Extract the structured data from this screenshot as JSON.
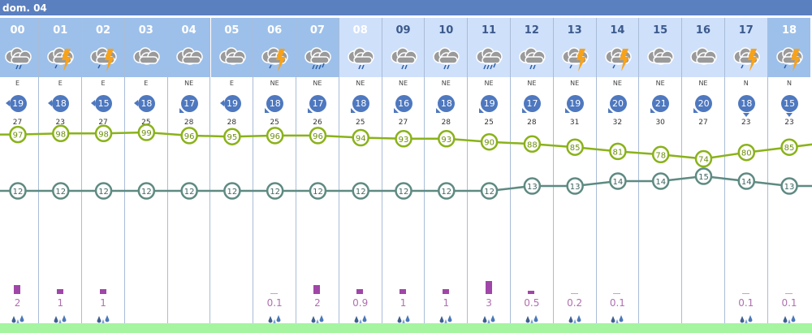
{
  "day_label": "dom. 04",
  "colors": {
    "header_dark": "#9dc0ea",
    "header_light": "#cfe0fb",
    "line_upper": "#8ab21a",
    "line_lower": "#5e8a82",
    "precip": "#a046a8",
    "footer": "#a5f5a0"
  },
  "hours": [
    {
      "hour": "00",
      "icon": "cloud-rain-icon",
      "dir": "E",
      "gust": "19",
      "max": "27",
      "upper": 97,
      "lower": 12,
      "precip": "2",
      "header": "dark"
    },
    {
      "hour": "01",
      "icon": "cloud-thunder-icon",
      "dir": "E",
      "gust": "18",
      "max": "23",
      "upper": 98,
      "lower": 12,
      "precip": "1",
      "header": "dark"
    },
    {
      "hour": "02",
      "icon": "cloud-thunder-icon",
      "dir": "E",
      "gust": "15",
      "max": "27",
      "upper": 98,
      "lower": 12,
      "precip": "1",
      "header": "dark"
    },
    {
      "hour": "03",
      "icon": "cloud-icon",
      "dir": "E",
      "gust": "18",
      "max": "25",
      "upper": 99,
      "lower": 12,
      "precip": "",
      "header": "dark"
    },
    {
      "hour": "04",
      "icon": "cloud-icon",
      "dir": "NE",
      "gust": "17",
      "max": "28",
      "upper": 96,
      "lower": 12,
      "precip": "",
      "header": "dark"
    },
    {
      "hour": "05",
      "icon": "cloud-icon",
      "dir": "E",
      "gust": "19",
      "max": "28",
      "upper": 95,
      "lower": 12,
      "precip": "",
      "header": "dark"
    },
    {
      "hour": "06",
      "icon": "cloud-thunder-icon",
      "dir": "NE",
      "gust": "18",
      "max": "25",
      "upper": 96,
      "lower": 12,
      "precip": "0.1",
      "header": "dark"
    },
    {
      "hour": "07",
      "icon": "cloud-heavy-rain-icon",
      "dir": "NE",
      "gust": "17",
      "max": "26",
      "upper": 96,
      "lower": 12,
      "precip": "2",
      "header": "dark"
    },
    {
      "hour": "08",
      "icon": "cloud-rain-icon",
      "dir": "NE",
      "gust": "18",
      "max": "25",
      "upper": 94,
      "lower": 12,
      "precip": "0.9",
      "header": "current"
    },
    {
      "hour": "09",
      "icon": "cloud-rain-icon",
      "dir": "NE",
      "gust": "16",
      "max": "27",
      "upper": 93,
      "lower": 12,
      "precip": "1",
      "header": "light"
    },
    {
      "hour": "10",
      "icon": "cloud-rain-icon",
      "dir": "NE",
      "gust": "18",
      "max": "28",
      "upper": 93,
      "lower": 12,
      "precip": "1",
      "header": "light"
    },
    {
      "hour": "11",
      "icon": "cloud-heavy-rain-icon",
      "dir": "NE",
      "gust": "19",
      "max": "25",
      "upper": 90,
      "lower": 12,
      "precip": "3",
      "header": "light"
    },
    {
      "hour": "12",
      "icon": "cloud-rain-icon",
      "dir": "NE",
      "gust": "17",
      "max": "28",
      "upper": 88,
      "lower": 13,
      "precip": "0.5",
      "header": "light"
    },
    {
      "hour": "13",
      "icon": "cloud-thunder-icon",
      "dir": "NE",
      "gust": "19",
      "max": "31",
      "upper": 85,
      "lower": 13,
      "precip": "0.2",
      "header": "light"
    },
    {
      "hour": "14",
      "icon": "cloud-thunder-icon",
      "dir": "NE",
      "gust": "20",
      "max": "32",
      "upper": 81,
      "lower": 14,
      "precip": "0.1",
      "header": "light"
    },
    {
      "hour": "15",
      "icon": "cloud-icon",
      "dir": "NE",
      "gust": "21",
      "max": "30",
      "upper": 78,
      "lower": 14,
      "precip": "",
      "header": "light"
    },
    {
      "hour": "16",
      "icon": "cloud-icon",
      "dir": "NE",
      "gust": "20",
      "max": "27",
      "upper": 74,
      "lower": 15,
      "precip": "",
      "header": "light"
    },
    {
      "hour": "17",
      "icon": "cloud-thunder-icon",
      "dir": "N",
      "gust": "18",
      "max": "23",
      "upper": 80,
      "lower": 14,
      "precip": "0.1",
      "header": "light"
    },
    {
      "hour": "18",
      "icon": "cloud-thunder-icon",
      "dir": "N",
      "gust": "15",
      "max": "23",
      "upper": 85,
      "lower": 13,
      "precip": "0.1",
      "header": "dark"
    }
  ]
}
